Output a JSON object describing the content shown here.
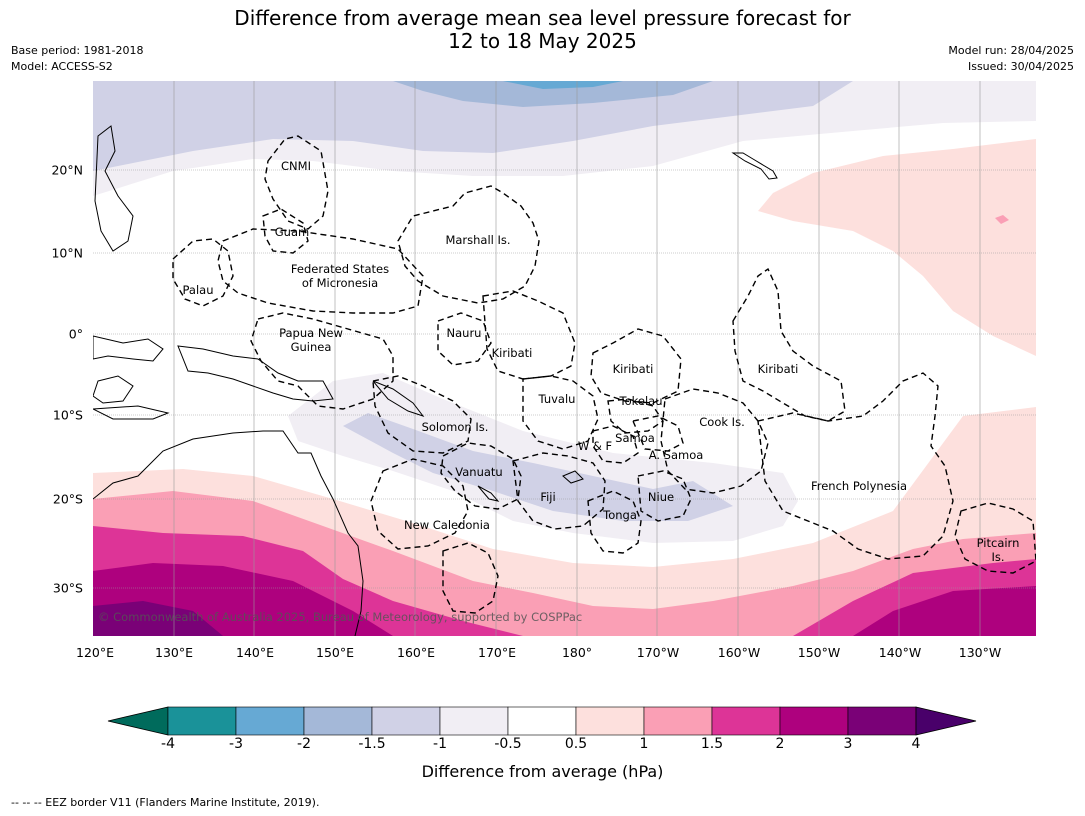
{
  "title_line1": "Difference from average mean sea level pressure forecast for",
  "title_line2": "12 to 18 May 2025",
  "meta_left": {
    "base_period": "Base period: 1981-2018",
    "model": "Model: ACCESS-S2"
  },
  "meta_right": {
    "model_run": "Model run: 28/04/2025",
    "issued": "Issued: 30/04/2025"
  },
  "lon_ticks": [
    "120°E",
    "130°E",
    "140°E",
    "150°E",
    "160°E",
    "170°E",
    "180°",
    "170°W",
    "160°W",
    "150°W",
    "140°W",
    "130°W"
  ],
  "lat_ticks": [
    "20°N",
    "10°N",
    "0°",
    "10°S",
    "20°S",
    "30°S"
  ],
  "regions": [
    "CNMI",
    "Guam",
    "Marshall Is.",
    "Federated States",
    "of Micronesia",
    "Palau",
    "Papua New",
    "Guinea",
    "Nauru",
    "Kiribati",
    "Kiribati",
    "Kiribati",
    "Tuvalu",
    "Tokelau",
    "Solomon Is.",
    "W & F",
    "Samoa",
    "A. Samoa",
    "Cook Is.",
    "Vanuatu",
    "Fiji",
    "Niue",
    "Tonga",
    "French Polynesia",
    "New Caledonia",
    "Pitcairn",
    "Is."
  ],
  "copyright": "© Commonwealth of Australia 2025, Bureau of Meteorology, supported by COSPPac",
  "colorbar": {
    "ticks": [
      "-4",
      "-3",
      "-2",
      "-1.5",
      "-1",
      "-0.5",
      "0.5",
      "1",
      "1.5",
      "2",
      "3",
      "4"
    ],
    "colors": [
      "#006b5c",
      "#1a9299",
      "#66a9d4",
      "#a4b8d8",
      "#d0d1e6",
      "#f1eef4",
      "#ffffff",
      "#fde0dd",
      "#fa9fb5",
      "#dd3497",
      "#ae017e",
      "#7a0177",
      "#49006a"
    ],
    "label": "Difference from average (hPa)"
  },
  "footer": "--  --  -- EEZ border V11 (Flanders Marine Institute, 2019)."
}
